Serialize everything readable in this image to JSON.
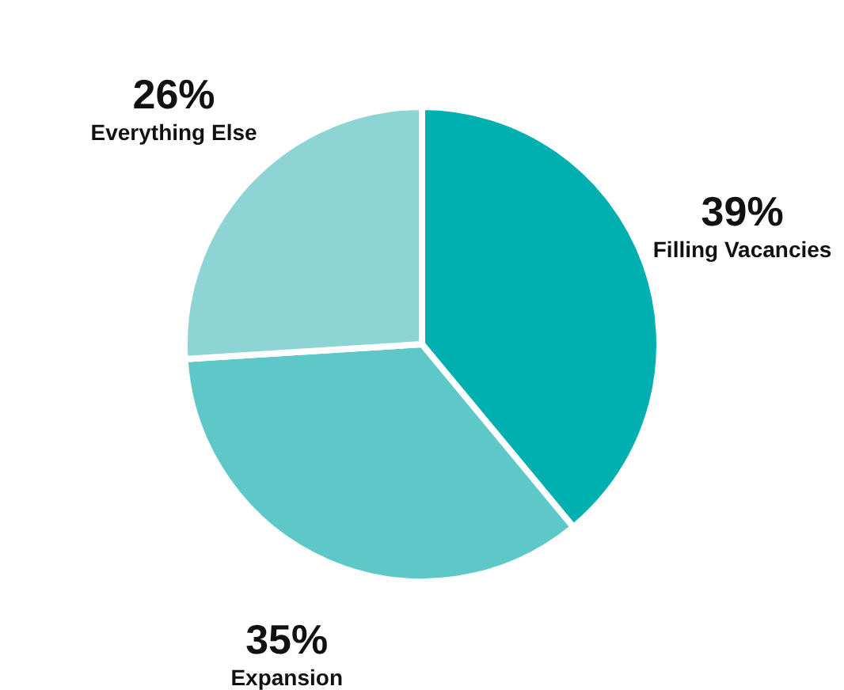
{
  "chart_data": {
    "type": "pie",
    "categories": [
      "Filling Vacancies",
      "Expansion",
      "Everything Else"
    ],
    "values": [
      39,
      35,
      26
    ],
    "colors": [
      "#00b0b0",
      "#5ec8c8",
      "#8fd4d4"
    ],
    "value_labels": [
      "39%",
      "35%",
      "26%"
    ]
  }
}
